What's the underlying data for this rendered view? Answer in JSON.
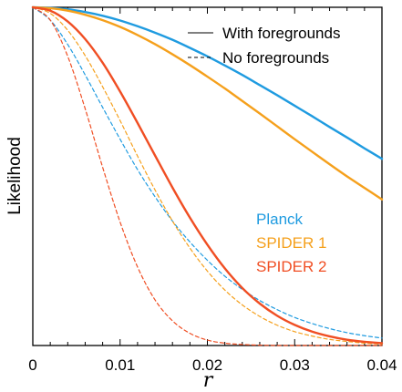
{
  "chart_data": {
    "type": "line",
    "title": "",
    "xlabel": "r",
    "ylabel": "Likelihood",
    "xlim": [
      0,
      0.04
    ],
    "ylim": [
      0,
      1.0
    ],
    "xticks": [
      0,
      0.01,
      0.02,
      0.03,
      0.04
    ],
    "xtick_labels": [
      "0",
      "0.01",
      "0.02",
      "0.03",
      "0.04"
    ],
    "grid": false,
    "legend": {
      "placement": "top-right",
      "entries": [
        {
          "label": "With foregrounds",
          "style": "solid"
        },
        {
          "label": "No foregrounds",
          "style": "dashed"
        }
      ]
    },
    "series_labels_placement": "right-middle",
    "series": [
      {
        "name": "Planck",
        "color": "#1f9be0",
        "style": "solid",
        "x": [
          0,
          0.002,
          0.004,
          0.006,
          0.008,
          0.01,
          0.012,
          0.014,
          0.016,
          0.018,
          0.02,
          0.022,
          0.024,
          0.026,
          0.028,
          0.03,
          0.032,
          0.034,
          0.036,
          0.038,
          0.04
        ],
        "y": [
          1.0,
          0.998,
          0.994,
          0.986,
          0.975,
          0.961,
          0.944,
          0.925,
          0.904,
          0.88,
          0.855,
          0.828,
          0.8,
          0.77,
          0.74,
          0.709,
          0.678,
          0.646,
          0.615,
          0.583,
          0.552
        ]
      },
      {
        "name": "SPIDER 1",
        "color": "#f5a01c",
        "style": "solid",
        "x": [
          0,
          0.002,
          0.004,
          0.006,
          0.008,
          0.01,
          0.012,
          0.014,
          0.016,
          0.018,
          0.02,
          0.022,
          0.024,
          0.026,
          0.028,
          0.03,
          0.032,
          0.034,
          0.036,
          0.038,
          0.04
        ],
        "y": [
          1.0,
          0.997,
          0.99,
          0.978,
          0.962,
          0.942,
          0.918,
          0.891,
          0.861,
          0.829,
          0.795,
          0.76,
          0.723,
          0.686,
          0.648,
          0.61,
          0.573,
          0.536,
          0.5,
          0.466,
          0.432
        ]
      },
      {
        "name": "SPIDER 2",
        "color": "#f04e23",
        "style": "solid",
        "x": [
          0,
          0.002,
          0.004,
          0.006,
          0.008,
          0.01,
          0.012,
          0.014,
          0.016,
          0.018,
          0.02,
          0.022,
          0.024,
          0.026,
          0.028,
          0.03,
          0.032,
          0.034,
          0.036,
          0.038,
          0.04
        ],
        "y": [
          1.0,
          0.99,
          0.958,
          0.906,
          0.836,
          0.751,
          0.658,
          0.562,
          0.467,
          0.378,
          0.298,
          0.228,
          0.17,
          0.124,
          0.088,
          0.061,
          0.041,
          0.027,
          0.017,
          0.011,
          0.007
        ]
      },
      {
        "name": "Planck",
        "color": "#1f9be0",
        "style": "dashed",
        "x": [
          0,
          0.002,
          0.004,
          0.006,
          0.008,
          0.01,
          0.012,
          0.014,
          0.016,
          0.018,
          0.02,
          0.022,
          0.024,
          0.026,
          0.028,
          0.03,
          0.032,
          0.034,
          0.036,
          0.038,
          0.04
        ],
        "y": [
          1.0,
          0.962,
          0.89,
          0.8,
          0.704,
          0.61,
          0.52,
          0.44,
          0.368,
          0.306,
          0.252,
          0.205,
          0.166,
          0.133,
          0.106,
          0.083,
          0.065,
          0.05,
          0.038,
          0.029,
          0.022
        ]
      },
      {
        "name": "SPIDER 1",
        "color": "#f5a01c",
        "style": "dashed",
        "x": [
          0,
          0.002,
          0.004,
          0.006,
          0.008,
          0.01,
          0.012,
          0.014,
          0.016,
          0.018,
          0.02,
          0.022,
          0.024,
          0.026,
          0.028,
          0.03,
          0.032,
          0.034,
          0.036,
          0.038,
          0.04
        ],
        "y": [
          1.0,
          0.982,
          0.932,
          0.857,
          0.765,
          0.665,
          0.56,
          0.46,
          0.368,
          0.288,
          0.22,
          0.164,
          0.12,
          0.086,
          0.06,
          0.041,
          0.028,
          0.018,
          0.012,
          0.007,
          0.004
        ]
      },
      {
        "name": "SPIDER 2",
        "color": "#f04e23",
        "style": "dashed",
        "x": [
          0,
          0.002,
          0.004,
          0.006,
          0.008,
          0.01,
          0.012,
          0.014,
          0.016,
          0.018,
          0.02,
          0.022,
          0.024,
          0.026,
          0.028,
          0.03,
          0.032,
          0.034,
          0.036,
          0.038,
          0.04
        ],
        "y": [
          1.0,
          0.962,
          0.855,
          0.7,
          0.527,
          0.365,
          0.232,
          0.135,
          0.073,
          0.036,
          0.016,
          0.007,
          0.003,
          0.001,
          0.0,
          0.0,
          0.0,
          0.0,
          0.0,
          0.0,
          0.0
        ]
      }
    ]
  }
}
